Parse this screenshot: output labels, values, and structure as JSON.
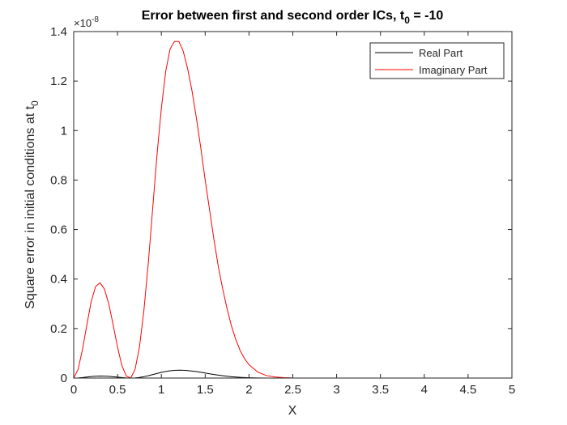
{
  "chart_data": {
    "type": "line",
    "title": "Error between first and second order ICs, t",
    "title_subscript": "0",
    "title_suffix": " = -10",
    "xlabel": "X",
    "ylabel": "Square error in initial conditions at t",
    "ylabel_subscript": "0",
    "y_exponent_base": "×10",
    "y_exponent": "-8",
    "xlim": [
      0,
      5
    ],
    "ylim": [
      0,
      1.4
    ],
    "xticks": [
      0,
      0.5,
      1,
      1.5,
      2,
      2.5,
      3,
      3.5,
      4,
      4.5,
      5
    ],
    "xtick_labels": [
      "0",
      "0.5",
      "1",
      "1.5",
      "2",
      "2.5",
      "3",
      "3.5",
      "4",
      "4.5",
      "5"
    ],
    "yticks": [
      0,
      0.2,
      0.4,
      0.6,
      0.8,
      1,
      1.2,
      1.4
    ],
    "ytick_labels": [
      "0",
      "0.2",
      "0.4",
      "0.6",
      "0.8",
      "1",
      "1.2",
      "1.4"
    ],
    "legend_position": "top-right",
    "series": [
      {
        "name": "Real Part",
        "color": "#000000",
        "x": [
          0,
          0.05,
          0.1,
          0.15,
          0.2,
          0.25,
          0.3,
          0.35,
          0.4,
          0.45,
          0.5,
          0.55,
          0.6,
          0.65,
          0.7,
          0.75,
          0.8,
          0.85,
          0.9,
          0.95,
          1.0,
          1.05,
          1.1,
          1.15,
          1.2,
          1.25,
          1.3,
          1.35,
          1.4,
          1.45,
          1.5,
          1.55,
          1.6,
          1.65,
          1.7,
          1.75,
          1.8,
          1.85,
          1.9,
          1.95,
          2.0,
          2.1,
          2.2,
          2.3,
          2.4,
          2.5,
          2.75,
          3.0,
          3.5,
          4.0,
          4.5,
          5.0
        ],
        "y": [
          0,
          0.0005,
          0.002,
          0.004,
          0.006,
          0.0075,
          0.008,
          0.0078,
          0.007,
          0.0055,
          0.0037,
          0.0019,
          0.0005,
          0,
          0.0006,
          0.0025,
          0.0055,
          0.0095,
          0.014,
          0.0185,
          0.0228,
          0.0265,
          0.0293,
          0.0311,
          0.0318,
          0.0315,
          0.0303,
          0.0284,
          0.026,
          0.0232,
          0.0203,
          0.0173,
          0.0144,
          0.0117,
          0.0093,
          0.0072,
          0.0054,
          0.004,
          0.0028,
          0.0019,
          0.0013,
          0.0005,
          0.0002,
          0.0001,
          0,
          0,
          0,
          0,
          0,
          0,
          0,
          0
        ]
      },
      {
        "name": "Imaginary Part",
        "color": "#ff0000",
        "x": [
          0,
          0.05,
          0.1,
          0.15,
          0.2,
          0.25,
          0.3,
          0.35,
          0.4,
          0.45,
          0.5,
          0.55,
          0.6,
          0.65,
          0.7,
          0.75,
          0.8,
          0.85,
          0.9,
          0.95,
          1.0,
          1.05,
          1.1,
          1.15,
          1.2,
          1.25,
          1.3,
          1.35,
          1.4,
          1.45,
          1.5,
          1.55,
          1.6,
          1.65,
          1.7,
          1.75,
          1.8,
          1.85,
          1.9,
          1.95,
          2.0,
          2.1,
          2.2,
          2.3,
          2.4,
          2.5,
          2.75,
          3.0,
          3.5,
          4.0,
          4.5,
          5.0
        ],
        "y": [
          0,
          0.035,
          0.115,
          0.215,
          0.31,
          0.37,
          0.385,
          0.36,
          0.3,
          0.215,
          0.125,
          0.05,
          0.008,
          0,
          0.035,
          0.125,
          0.27,
          0.46,
          0.68,
          0.9,
          1.09,
          1.24,
          1.33,
          1.36,
          1.36,
          1.32,
          1.25,
          1.16,
          1.05,
          0.93,
          0.8,
          0.68,
          0.56,
          0.45,
          0.36,
          0.28,
          0.21,
          0.155,
          0.11,
          0.078,
          0.054,
          0.024,
          0.01,
          0.004,
          0.0015,
          0.0005,
          0,
          0,
          0,
          0,
          0,
          0
        ]
      }
    ]
  }
}
